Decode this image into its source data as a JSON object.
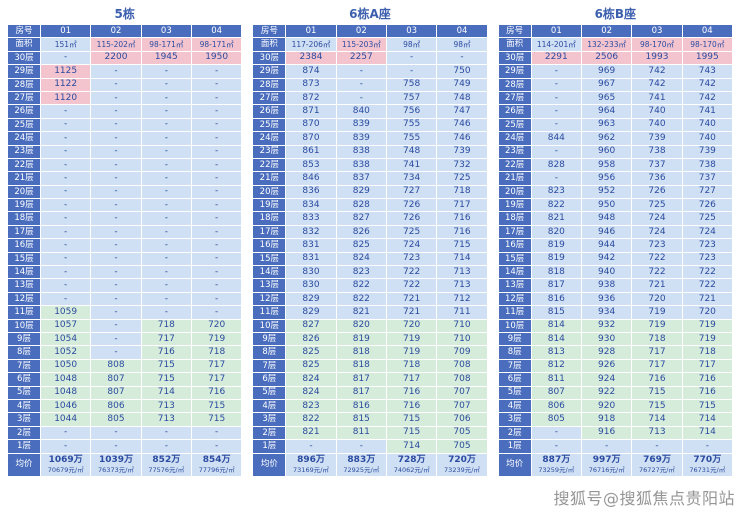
{
  "watermark": "搜狐号@搜狐焦点贵阳站",
  "labels": {
    "room": "房号",
    "area": "面积",
    "avg": "均价"
  },
  "colors": {
    "header": "#4a6dbe",
    "cell_blue": "#cfe0f4",
    "cell_pink": "#f3c4ce",
    "cell_green": "#d6ecda",
    "text": "#2b4ba0",
    "title": "#3c5fae"
  },
  "chart_data": {
    "type": "table",
    "note_color_codes": "b=blue available cell, p=pink premium cell, g=green low-floor cell",
    "tables": [
      {
        "title": "5栋",
        "rooms": [
          "01",
          "02",
          "03",
          "04"
        ],
        "areas": [
          "151㎡",
          "115-202㎡",
          "98-171㎡",
          "98-171㎡"
        ],
        "area_colors": "bppp",
        "rows": [
          {
            "f": "30层",
            "v": [
              "-",
              "2200",
              "1945",
              "1950"
            ],
            "c": "bppp"
          },
          {
            "f": "29层",
            "v": [
              "1125",
              "-",
              "-",
              "-"
            ],
            "c": "pbbb"
          },
          {
            "f": "28层",
            "v": [
              "1122",
              "-",
              "-",
              "-"
            ],
            "c": "pbbb"
          },
          {
            "f": "27层",
            "v": [
              "1120",
              "-",
              "-",
              "-"
            ],
            "c": "pbbb"
          },
          {
            "f": "26层",
            "v": [
              "-",
              "-",
              "-",
              "-"
            ],
            "c": "bbbb"
          },
          {
            "f": "25层",
            "v": [
              "-",
              "-",
              "-",
              "-"
            ],
            "c": "bbbb"
          },
          {
            "f": "24层",
            "v": [
              "-",
              "-",
              "-",
              "-"
            ],
            "c": "bbbb"
          },
          {
            "f": "23层",
            "v": [
              "-",
              "-",
              "-",
              "-"
            ],
            "c": "bbbb"
          },
          {
            "f": "22层",
            "v": [
              "-",
              "-",
              "-",
              "-"
            ],
            "c": "bbbb"
          },
          {
            "f": "21层",
            "v": [
              "-",
              "-",
              "-",
              "-"
            ],
            "c": "bbbb"
          },
          {
            "f": "20层",
            "v": [
              "-",
              "-",
              "-",
              "-"
            ],
            "c": "bbbb"
          },
          {
            "f": "19层",
            "v": [
              "-",
              "-",
              "-",
              "-"
            ],
            "c": "bbbb"
          },
          {
            "f": "18层",
            "v": [
              "-",
              "-",
              "-",
              "-"
            ],
            "c": "bbbb"
          },
          {
            "f": "17层",
            "v": [
              "-",
              "-",
              "-",
              "-"
            ],
            "c": "bbbb"
          },
          {
            "f": "16层",
            "v": [
              "-",
              "-",
              "-",
              "-"
            ],
            "c": "bbbb"
          },
          {
            "f": "15层",
            "v": [
              "-",
              "-",
              "-",
              "-"
            ],
            "c": "bbbb"
          },
          {
            "f": "14层",
            "v": [
              "-",
              "-",
              "-",
              "-"
            ],
            "c": "bbbb"
          },
          {
            "f": "13层",
            "v": [
              "-",
              "-",
              "-",
              "-"
            ],
            "c": "bbbb"
          },
          {
            "f": "12层",
            "v": [
              "-",
              "-",
              "-",
              "-"
            ],
            "c": "bbbb"
          },
          {
            "f": "11层",
            "v": [
              "1059",
              "-",
              "-",
              "-"
            ],
            "c": "gbbb"
          },
          {
            "f": "10层",
            "v": [
              "1057",
              "-",
              "718",
              "720"
            ],
            "c": "gbgg"
          },
          {
            "f": "9层",
            "v": [
              "1054",
              "-",
              "717",
              "719"
            ],
            "c": "gbgg"
          },
          {
            "f": "8层",
            "v": [
              "1052",
              "-",
              "716",
              "718"
            ],
            "c": "gbgg"
          },
          {
            "f": "7层",
            "v": [
              "1050",
              "808",
              "715",
              "717"
            ],
            "c": "gggg"
          },
          {
            "f": "6层",
            "v": [
              "1048",
              "807",
              "715",
              "717"
            ],
            "c": "gggg"
          },
          {
            "f": "5层",
            "v": [
              "1048",
              "807",
              "714",
              "716"
            ],
            "c": "gggg"
          },
          {
            "f": "4层",
            "v": [
              "1046",
              "806",
              "713",
              "715"
            ],
            "c": "gggg"
          },
          {
            "f": "3层",
            "v": [
              "1044",
              "805",
              "713",
              "715"
            ],
            "c": "gggg"
          },
          {
            "f": "2层",
            "v": [
              "-",
              "-",
              "-",
              "-"
            ],
            "c": "bbbb"
          },
          {
            "f": "1层",
            "v": [
              "-",
              "-",
              "-",
              "-"
            ],
            "c": "bbbb"
          }
        ],
        "avg": [
          {
            "p": "1069万",
            "u": "70679元/㎡"
          },
          {
            "p": "1039万",
            "u": "76373元/㎡"
          },
          {
            "p": "852万",
            "u": "77576元/㎡"
          },
          {
            "p": "854万",
            "u": "77796元/㎡"
          }
        ]
      },
      {
        "title": "6栋A座",
        "rooms": [
          "01",
          "02",
          "03",
          "04"
        ],
        "areas": [
          "117-206㎡",
          "115-203㎡",
          "98㎡",
          "98㎡"
        ],
        "area_colors": "bpbb",
        "rows": [
          {
            "f": "30层",
            "v": [
              "2384",
              "2257",
              "-",
              "-"
            ],
            "c": "ppbb"
          },
          {
            "f": "29层",
            "v": [
              "874",
              "-",
              "-",
              "750"
            ],
            "c": "bbbb"
          },
          {
            "f": "28层",
            "v": [
              "873",
              "-",
              "758",
              "749"
            ],
            "c": "bbbb"
          },
          {
            "f": "27层",
            "v": [
              "872",
              "-",
              "757",
              "748"
            ],
            "c": "bbbb"
          },
          {
            "f": "26层",
            "v": [
              "871",
              "840",
              "756",
              "747"
            ],
            "c": "bbbb"
          },
          {
            "f": "25层",
            "v": [
              "870",
              "839",
              "755",
              "746"
            ],
            "c": "bbbb"
          },
          {
            "f": "24层",
            "v": [
              "870",
              "839",
              "755",
              "746"
            ],
            "c": "bbbb"
          },
          {
            "f": "23层",
            "v": [
              "861",
              "838",
              "748",
              "739"
            ],
            "c": "bbbb"
          },
          {
            "f": "22层",
            "v": [
              "853",
              "838",
              "741",
              "732"
            ],
            "c": "bbbb"
          },
          {
            "f": "21层",
            "v": [
              "846",
              "837",
              "734",
              "725"
            ],
            "c": "bbbb"
          },
          {
            "f": "20层",
            "v": [
              "836",
              "829",
              "727",
              "718"
            ],
            "c": "bbbb"
          },
          {
            "f": "19层",
            "v": [
              "834",
              "828",
              "726",
              "717"
            ],
            "c": "bbbb"
          },
          {
            "f": "18层",
            "v": [
              "833",
              "827",
              "726",
              "716"
            ],
            "c": "bbbb"
          },
          {
            "f": "17层",
            "v": [
              "832",
              "826",
              "725",
              "716"
            ],
            "c": "bbbb"
          },
          {
            "f": "16层",
            "v": [
              "831",
              "825",
              "724",
              "715"
            ],
            "c": "bbbb"
          },
          {
            "f": "15层",
            "v": [
              "831",
              "824",
              "723",
              "714"
            ],
            "c": "bbbb"
          },
          {
            "f": "14层",
            "v": [
              "830",
              "823",
              "722",
              "713"
            ],
            "c": "bbbb"
          },
          {
            "f": "13层",
            "v": [
              "830",
              "822",
              "722",
              "713"
            ],
            "c": "bbbb"
          },
          {
            "f": "12层",
            "v": [
              "829",
              "822",
              "721",
              "712"
            ],
            "c": "bbbb"
          },
          {
            "f": "11层",
            "v": [
              "829",
              "821",
              "721",
              "711"
            ],
            "c": "bbbb"
          },
          {
            "f": "10层",
            "v": [
              "827",
              "820",
              "720",
              "710"
            ],
            "c": "gggg"
          },
          {
            "f": "9层",
            "v": [
              "826",
              "819",
              "719",
              "710"
            ],
            "c": "gggg"
          },
          {
            "f": "8层",
            "v": [
              "825",
              "818",
              "719",
              "709"
            ],
            "c": "gggg"
          },
          {
            "f": "7层",
            "v": [
              "825",
              "818",
              "718",
              "708"
            ],
            "c": "gggg"
          },
          {
            "f": "6层",
            "v": [
              "824",
              "817",
              "717",
              "708"
            ],
            "c": "gggg"
          },
          {
            "f": "5层",
            "v": [
              "824",
              "817",
              "716",
              "707"
            ],
            "c": "gggg"
          },
          {
            "f": "4层",
            "v": [
              "823",
              "816",
              "716",
              "707"
            ],
            "c": "gggg"
          },
          {
            "f": "3层",
            "v": [
              "822",
              "815",
              "715",
              "706"
            ],
            "c": "gggg"
          },
          {
            "f": "2层",
            "v": [
              "821",
              "811",
              "715",
              "705"
            ],
            "c": "gggg"
          },
          {
            "f": "1层",
            "v": [
              "-",
              "-",
              "714",
              "705"
            ],
            "c": "bbgg"
          }
        ],
        "avg": [
          {
            "p": "896万",
            "u": "73169元/㎡"
          },
          {
            "p": "883万",
            "u": "72925元/㎡"
          },
          {
            "p": "728万",
            "u": "74062元/㎡"
          },
          {
            "p": "720万",
            "u": "73239元/㎡"
          }
        ]
      },
      {
        "title": "6栋B座",
        "rooms": [
          "01",
          "02",
          "03",
          "04"
        ],
        "areas": [
          "114-201㎡",
          "132-233㎡",
          "98-170㎡",
          "98-170㎡"
        ],
        "area_colors": "bppp",
        "rows": [
          {
            "f": "30层",
            "v": [
              "2291",
              "2506",
              "1993",
              "1995"
            ],
            "c": "pppp"
          },
          {
            "f": "29层",
            "v": [
              "-",
              "969",
              "742",
              "743"
            ],
            "c": "bbbb"
          },
          {
            "f": "28层",
            "v": [
              "-",
              "967",
              "742",
              "742"
            ],
            "c": "bbbb"
          },
          {
            "f": "27层",
            "v": [
              "-",
              "965",
              "741",
              "742"
            ],
            "c": "bbbb"
          },
          {
            "f": "26层",
            "v": [
              "-",
              "964",
              "740",
              "741"
            ],
            "c": "bbbb"
          },
          {
            "f": "25层",
            "v": [
              "-",
              "963",
              "740",
              "740"
            ],
            "c": "bbbb"
          },
          {
            "f": "24层",
            "v": [
              "844",
              "962",
              "739",
              "740"
            ],
            "c": "bbbb"
          },
          {
            "f": "23层",
            "v": [
              "-",
              "960",
              "738",
              "739"
            ],
            "c": "bbbb"
          },
          {
            "f": "22层",
            "v": [
              "828",
              "958",
              "737",
              "738"
            ],
            "c": "bbbb"
          },
          {
            "f": "21层",
            "v": [
              "-",
              "956",
              "736",
              "737"
            ],
            "c": "bbbb"
          },
          {
            "f": "20层",
            "v": [
              "823",
              "952",
              "726",
              "727"
            ],
            "c": "bbbb"
          },
          {
            "f": "19层",
            "v": [
              "822",
              "950",
              "725",
              "726"
            ],
            "c": "bbbb"
          },
          {
            "f": "18层",
            "v": [
              "821",
              "948",
              "724",
              "725"
            ],
            "c": "bbbb"
          },
          {
            "f": "17层",
            "v": [
              "820",
              "946",
              "724",
              "724"
            ],
            "c": "bbbb"
          },
          {
            "f": "16层",
            "v": [
              "819",
              "944",
              "723",
              "723"
            ],
            "c": "bbbb"
          },
          {
            "f": "15层",
            "v": [
              "819",
              "942",
              "722",
              "723"
            ],
            "c": "bbbb"
          },
          {
            "f": "14层",
            "v": [
              "818",
              "940",
              "722",
              "722"
            ],
            "c": "bbbb"
          },
          {
            "f": "13层",
            "v": [
              "817",
              "938",
              "721",
              "722"
            ],
            "c": "bbbb"
          },
          {
            "f": "12层",
            "v": [
              "816",
              "936",
              "720",
              "721"
            ],
            "c": "bbbb"
          },
          {
            "f": "11层",
            "v": [
              "815",
              "934",
              "719",
              "720"
            ],
            "c": "bbbb"
          },
          {
            "f": "10层",
            "v": [
              "814",
              "932",
              "719",
              "719"
            ],
            "c": "gggg"
          },
          {
            "f": "9层",
            "v": [
              "814",
              "930",
              "718",
              "719"
            ],
            "c": "gggg"
          },
          {
            "f": "8层",
            "v": [
              "813",
              "928",
              "717",
              "718"
            ],
            "c": "gggg"
          },
          {
            "f": "7层",
            "v": [
              "812",
              "926",
              "717",
              "717"
            ],
            "c": "gggg"
          },
          {
            "f": "6层",
            "v": [
              "811",
              "924",
              "716",
              "716"
            ],
            "c": "gggg"
          },
          {
            "f": "5层",
            "v": [
              "807",
              "922",
              "715",
              "716"
            ],
            "c": "gggg"
          },
          {
            "f": "4层",
            "v": [
              "806",
              "920",
              "715",
              "715"
            ],
            "c": "gggg"
          },
          {
            "f": "3层",
            "v": [
              "805",
              "918",
              "714",
              "714"
            ],
            "c": "gggg"
          },
          {
            "f": "2层",
            "v": [
              "-",
              "916",
              "713",
              "714"
            ],
            "c": "bggg"
          },
          {
            "f": "1层",
            "v": [
              "-",
              "-",
              "-",
              "-"
            ],
            "c": "bbbb"
          }
        ],
        "avg": [
          {
            "p": "887万",
            "u": "73259元/㎡"
          },
          {
            "p": "997万",
            "u": "76716元/㎡"
          },
          {
            "p": "769万",
            "u": "76727元/㎡"
          },
          {
            "p": "770万",
            "u": "76731元/㎡"
          }
        ]
      }
    ]
  }
}
